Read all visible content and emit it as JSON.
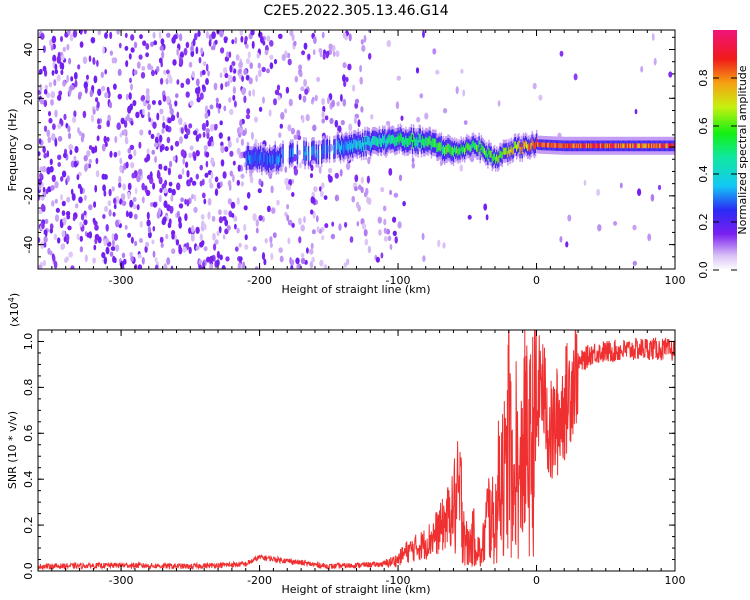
{
  "title": "C2E5.2022.305.13.46.G14",
  "chart_data": [
    {
      "type": "heatmap",
      "xlabel": "Height of straight line (km)",
      "ylabel": "Frequency (Hz)",
      "xlim": [
        -360,
        100
      ],
      "ylim": [
        -50,
        48
      ],
      "xticks": [
        "-300",
        "-200",
        "-100",
        "0",
        "100"
      ],
      "yticks": [
        "-40",
        "-20",
        "0",
        "20",
        "40"
      ],
      "colorbar": {
        "label": "Normalized spectral amplitude",
        "range": [
          0.0,
          1.0
        ],
        "ticks": [
          "0.0",
          "0.2",
          "0.4",
          "0.6",
          "0.8"
        ]
      },
      "signal_track": [
        {
          "x": -210,
          "y": -4,
          "amp": 0.3
        },
        {
          "x": -195,
          "y": -5,
          "amp": 0.3
        },
        {
          "x": -140,
          "y": 0,
          "amp": 0.35
        },
        {
          "x": -120,
          "y": 2,
          "amp": 0.45
        },
        {
          "x": -100,
          "y": 3,
          "amp": 0.5
        },
        {
          "x": -80,
          "y": 2,
          "amp": 0.55
        },
        {
          "x": -60,
          "y": -2,
          "amp": 0.6
        },
        {
          "x": -45,
          "y": 1,
          "amp": 0.6
        },
        {
          "x": -30,
          "y": -5,
          "amp": 0.6
        },
        {
          "x": -20,
          "y": -1,
          "amp": 0.75
        },
        {
          "x": 0,
          "y": 1,
          "amp": 0.85
        },
        {
          "x": 20,
          "y": 0.5,
          "amp": 0.9
        },
        {
          "x": 60,
          "y": 0.5,
          "amp": 0.9
        },
        {
          "x": 100,
          "y": 0.5,
          "amp": 0.9
        }
      ]
    },
    {
      "type": "line",
      "xlabel": "Height of straight line (km)",
      "ylabel": "SNR (10 * v/v)",
      "multiplier": "(x10",
      "multiplier_exp": "4",
      "multiplier_close": ")",
      "xlim": [
        -360,
        100
      ],
      "ylim": [
        0,
        1.05
      ],
      "xticks": [
        "-300",
        "-200",
        "-100",
        "0",
        "100"
      ],
      "yticks": [
        "0.0",
        "0.2",
        "0.4",
        "0.6",
        "0.8",
        "1.0"
      ],
      "color": "#f03030",
      "series": [
        {
          "x": [
            -360,
            -300,
            -250,
            -210,
            -200,
            -150,
            -110,
            -100,
            -95,
            -80,
            -70,
            -60,
            -55,
            -50,
            -45,
            -40,
            -35,
            -30,
            -25,
            -22,
            -20,
            -17,
            -15,
            -12,
            -10,
            -5,
            0,
            3,
            10,
            20,
            30,
            40,
            60,
            80,
            100
          ],
          "y": [
            0.02,
            0.025,
            0.02,
            0.03,
            0.06,
            0.02,
            0.03,
            0.05,
            0.08,
            0.12,
            0.18,
            0.27,
            0.32,
            0.1,
            0.15,
            0.06,
            0.25,
            0.2,
            0.5,
            0.35,
            0.7,
            0.25,
            0.55,
            0.3,
            0.6,
            0.5,
            0.65,
            0.85,
            0.58,
            0.72,
            0.9,
            0.95,
            0.96,
            0.97,
            0.96
          ]
        }
      ]
    }
  ]
}
